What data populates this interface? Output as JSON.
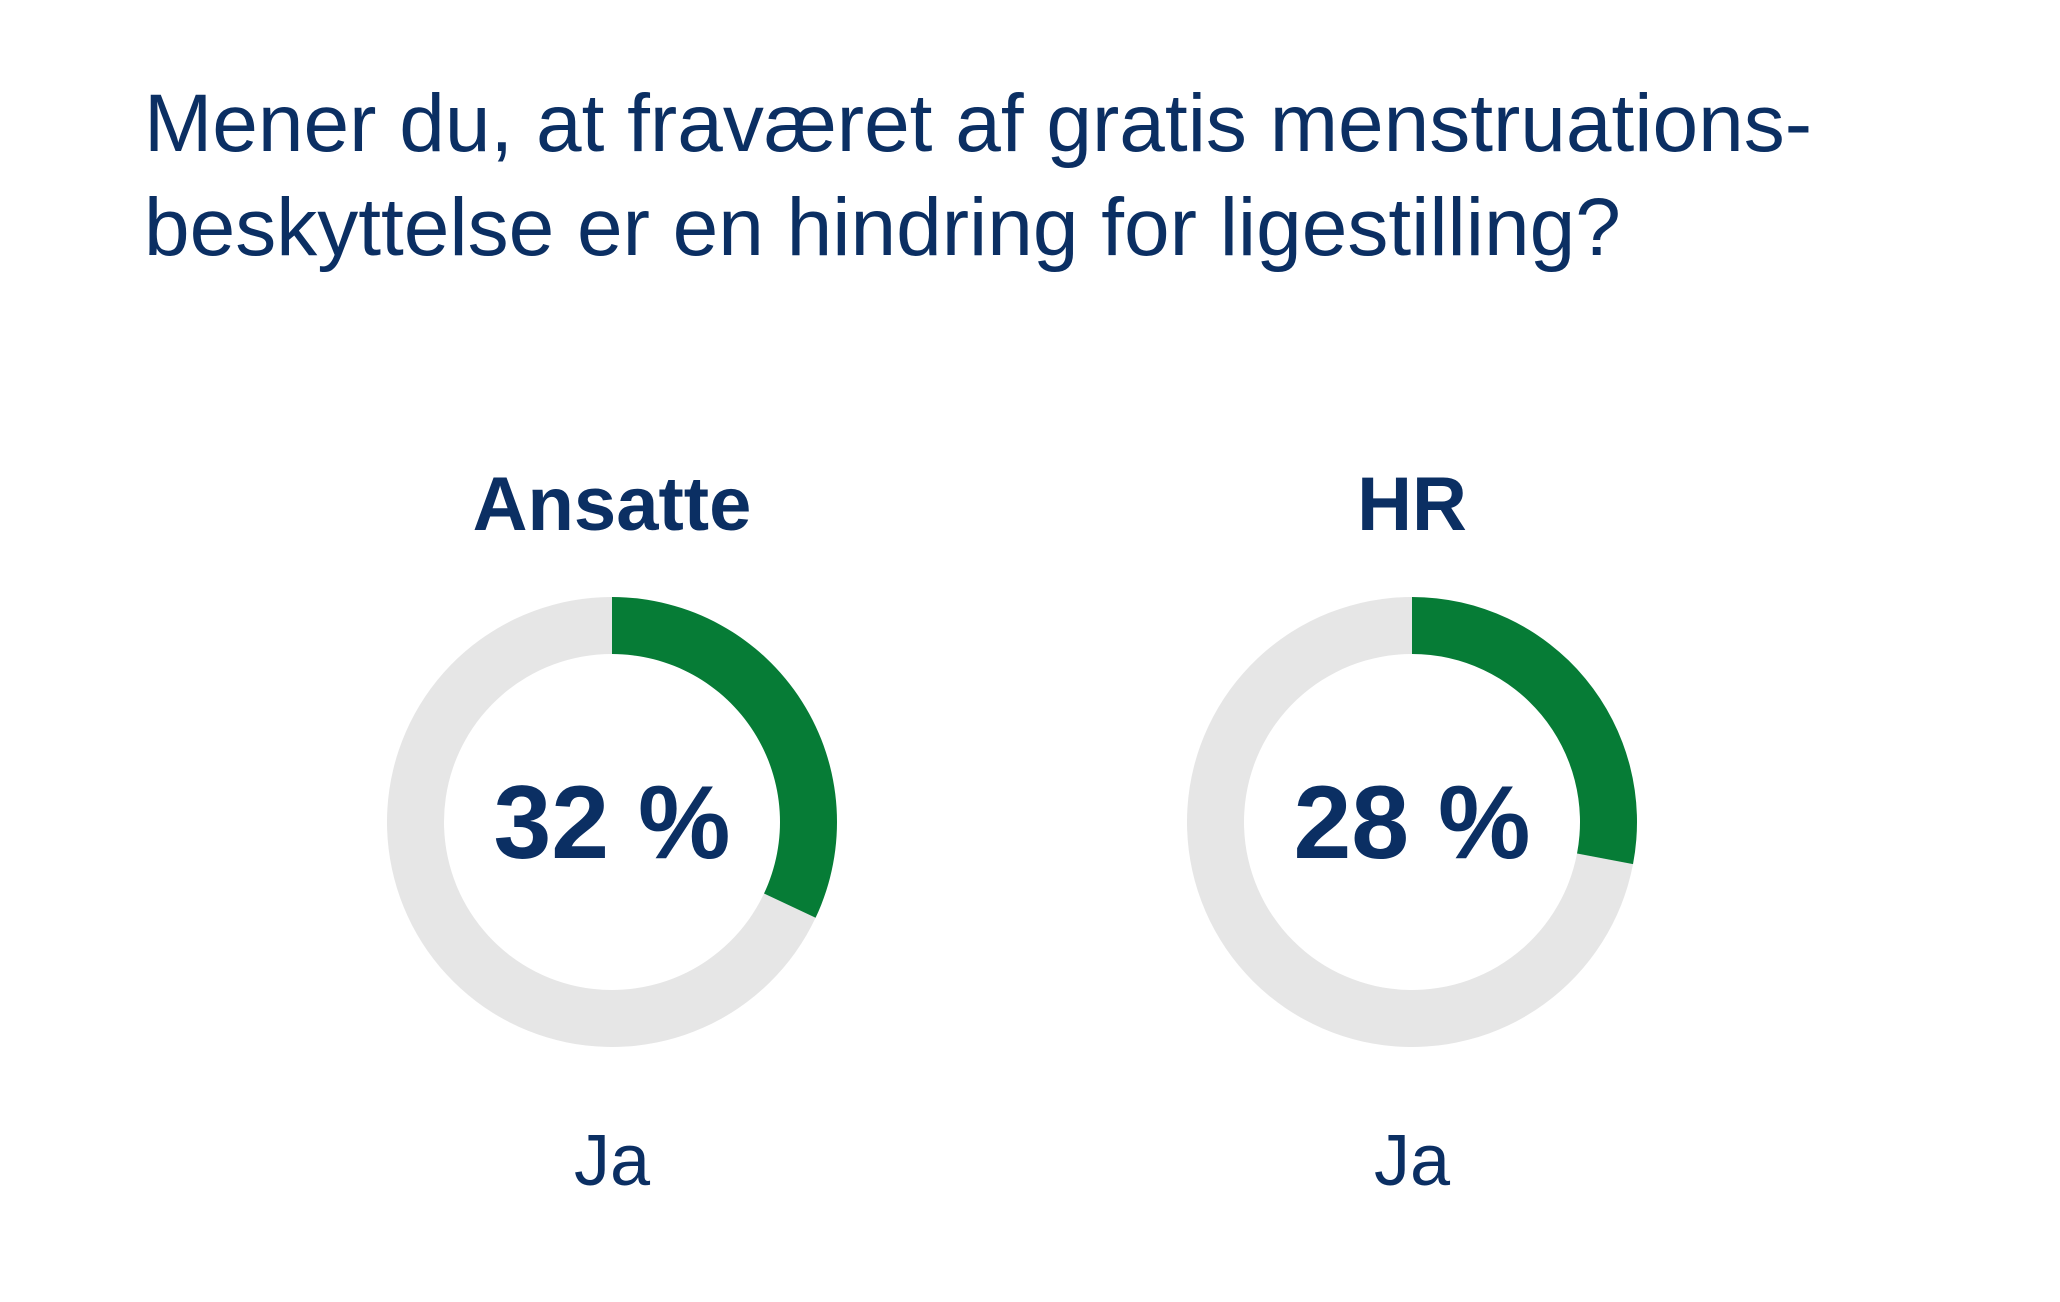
{
  "title": {
    "line1": "Mener du, at fraværet af gratis menstruations-",
    "line2": "beskyttelse er en hindring for ligestilling?"
  },
  "colors": {
    "title": "#0b2f63",
    "value": "#0b2f63",
    "filled": "#067c36",
    "remainder": "#e6e6e6",
    "background": "#ffffff"
  },
  "chart_data": [
    {
      "type": "pie",
      "variant": "donut",
      "title": "Ansatte",
      "label": "Ja",
      "value": 32,
      "value_label": "32 %",
      "unit": "%",
      "max": 100
    },
    {
      "type": "pie",
      "variant": "donut",
      "title": "HR",
      "label": "Ja",
      "value": 28,
      "value_label": "28 %",
      "unit": "%",
      "max": 100
    }
  ]
}
